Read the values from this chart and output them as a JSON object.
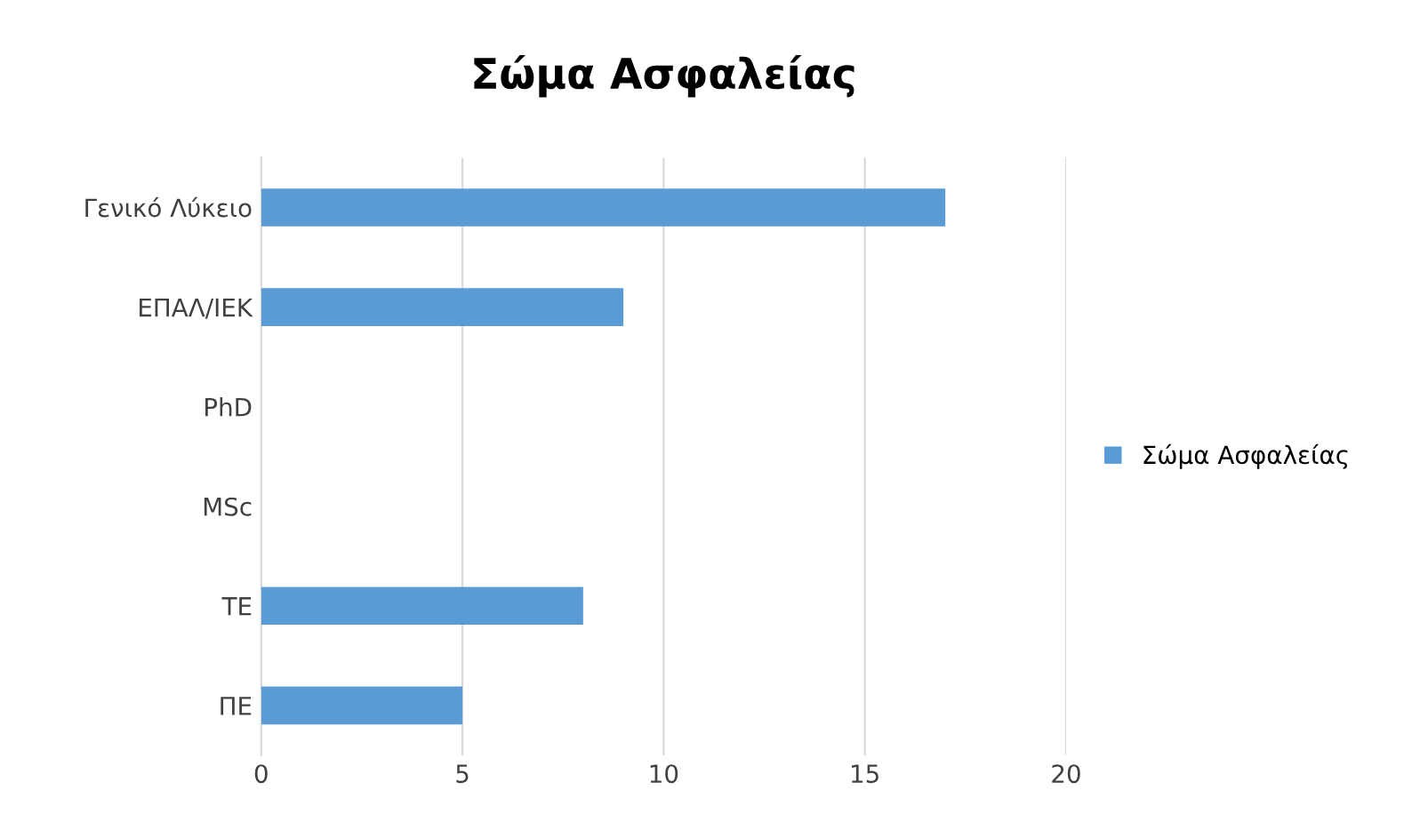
{
  "chart_data": {
    "type": "bar",
    "orientation": "horizontal",
    "title": "Σώμα Ασφαλείας",
    "categories": [
      "Γενικό Λύκειο",
      "ΕΠΑΛ/ΙΕΚ",
      "PhD",
      "MSc",
      "ΤΕ",
      "ΠΕ"
    ],
    "series": [
      {
        "name": "Σώμα Ασφαλείας",
        "color": "#5b9bd5",
        "values": [
          17,
          9,
          0,
          0,
          8,
          5
        ]
      }
    ],
    "xlim": [
      0,
      20
    ],
    "xticks": [
      0,
      5,
      10,
      15,
      20
    ],
    "grid": "x",
    "legend": "right"
  }
}
